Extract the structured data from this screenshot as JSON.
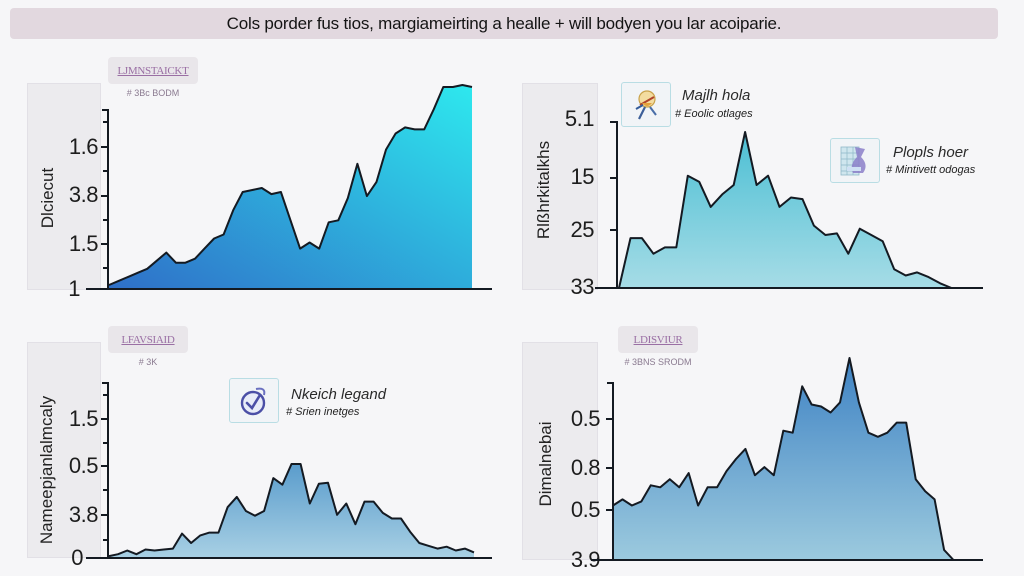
{
  "banner": {
    "text": "Cols porder fus tios, margiameirting a healle + will bodyen you lar acoiparie."
  },
  "panels": [
    {
      "tag": "LJMNSTAICKT",
      "tag_sub": "# 3Bc BODM",
      "ylabel": "Dlciecut",
      "ticks": [
        "1.6",
        "3.8",
        "1.5",
        "1"
      ]
    },
    {
      "ylabel": "Rlßhrkitalkhs",
      "ticks": [
        "5.1",
        "15",
        "25",
        "33"
      ],
      "legends": [
        {
          "title": "Majlh hola",
          "sub": "# Eoolic otlages",
          "icon": "bulb-tools-icon"
        },
        {
          "title": "Plopls hoer",
          "sub": "# Mintivett odogas",
          "icon": "spreadsheet-icon"
        }
      ]
    },
    {
      "tag": "LFAVSIAID",
      "tag_sub": "# 3K",
      "ylabel": "Nameepjanlalmcaly",
      "ticks": [
        "1.5",
        "0.5",
        "3.8",
        "0"
      ],
      "legends": [
        {
          "title": "Nkeich legand",
          "sub": "# Srien inetges",
          "icon": "check-circle-icon"
        }
      ]
    },
    {
      "tag": "LDISVIUR",
      "tag_sub": "# 3BNS SRODM",
      "ylabel": "Dimalnebai",
      "ticks": [
        "0.5",
        "0.8",
        "0.5",
        "3.9"
      ]
    }
  ],
  "colors": {
    "banner_bg": "#e2d8df",
    "chart1_top": "#2ee8ee",
    "chart1_bottom": "#2f6fc8",
    "chart2_top": "#4cbfd4",
    "chart2_bottom": "#a6dce6",
    "chart3_top": "#5a9ccc",
    "chart3_bottom": "#a8d0e4",
    "chart4_top": "#3f83c4",
    "chart4_bottom": "#9ccade",
    "outline": "#141a22"
  },
  "chart_data": [
    {
      "type": "area",
      "title": "LJMNSTAICKT",
      "ylabel": "Dlciecut",
      "xlabel": "",
      "y_tick_labels": [
        "1.6",
        "3.8",
        "1.5",
        "1"
      ],
      "grid": false,
      "legend": null,
      "x": [
        0,
        1,
        2,
        3,
        4,
        5,
        6,
        7,
        8,
        9,
        10,
        11,
        12,
        13,
        14,
        15,
        16,
        17,
        18,
        19,
        20,
        21,
        22,
        23,
        24,
        25,
        26,
        27,
        28,
        29,
        30,
        31,
        32,
        33,
        34,
        35,
        36,
        37,
        38
      ],
      "values_normalized": [
        0.02,
        0.04,
        0.06,
        0.08,
        0.1,
        0.14,
        0.18,
        0.13,
        0.13,
        0.15,
        0.2,
        0.25,
        0.27,
        0.39,
        0.48,
        0.49,
        0.5,
        0.47,
        0.48,
        0.34,
        0.2,
        0.23,
        0.2,
        0.33,
        0.34,
        0.45,
        0.62,
        0.46,
        0.53,
        0.69,
        0.77,
        0.8,
        0.79,
        0.79,
        0.89,
        1.0,
        1.0,
        1.01,
        1.0
      ]
    },
    {
      "type": "area",
      "title": "",
      "ylabel": "Rlßhrkitalkhs",
      "xlabel": "",
      "y_tick_labels": [
        "5.1",
        "15",
        "25",
        "33"
      ],
      "grid": false,
      "legend": [
        "Majlh hola",
        "Plopls hoer"
      ],
      "x": [
        0,
        1,
        2,
        3,
        4,
        5,
        6,
        7,
        8,
        9,
        10,
        11,
        12,
        13,
        14,
        15,
        16,
        17,
        18,
        19,
        20,
        21,
        22,
        23,
        24,
        25,
        26,
        27,
        28,
        29,
        30
      ],
      "values_normalized": [
        0.0,
        0.32,
        0.32,
        0.22,
        0.26,
        0.26,
        0.72,
        0.68,
        0.52,
        0.6,
        0.66,
        1.0,
        0.66,
        0.72,
        0.52,
        0.58,
        0.57,
        0.4,
        0.34,
        0.35,
        0.22,
        0.38,
        0.34,
        0.3,
        0.12,
        0.08,
        0.1,
        0.07,
        0.03,
        0.0,
        0.0
      ]
    },
    {
      "type": "area",
      "title": "LFAVSIAID",
      "ylabel": "Nameepjanlalmcaly",
      "xlabel": "",
      "y_tick_labels": [
        "1.5",
        "0.5",
        "3.8",
        "0"
      ],
      "grid": false,
      "legend": [
        "Nkeich legand"
      ],
      "x": [
        0,
        1,
        2,
        3,
        4,
        5,
        6,
        7,
        8,
        9,
        10,
        11,
        12,
        13,
        14,
        15,
        16,
        17,
        18,
        19,
        20,
        21,
        22,
        23,
        24,
        25,
        26,
        27,
        28,
        29,
        30,
        31,
        32,
        33,
        34,
        35,
        36,
        37,
        38,
        39,
        40
      ],
      "values_normalized": [
        0.02,
        0.04,
        0.08,
        0.04,
        0.09,
        0.08,
        0.09,
        0.1,
        0.26,
        0.16,
        0.24,
        0.27,
        0.27,
        0.54,
        0.65,
        0.5,
        0.45,
        0.5,
        0.85,
        0.78,
        1.0,
        1.0,
        0.58,
        0.79,
        0.8,
        0.46,
        0.58,
        0.36,
        0.6,
        0.6,
        0.48,
        0.42,
        0.42,
        0.28,
        0.16,
        0.13,
        0.1,
        0.12,
        0.08,
        0.1,
        0.06
      ]
    },
    {
      "type": "area",
      "title": "LDISVIUR",
      "ylabel": "Dimalnebai",
      "xlabel": "",
      "y_tick_labels": [
        "0.5",
        "0.8",
        "0.5",
        "3.9"
      ],
      "grid": false,
      "legend": null,
      "x": [
        0,
        1,
        2,
        3,
        4,
        5,
        6,
        7,
        8,
        9,
        10,
        11,
        12,
        13,
        14,
        15,
        16,
        17,
        18,
        19,
        20,
        21,
        22,
        23,
        24,
        25,
        26,
        27,
        28,
        29,
        30,
        31,
        32,
        33,
        34,
        35,
        36,
        37
      ],
      "values_normalized": [
        0.27,
        0.3,
        0.27,
        0.29,
        0.37,
        0.36,
        0.4,
        0.36,
        0.43,
        0.27,
        0.36,
        0.36,
        0.44,
        0.5,
        0.55,
        0.42,
        0.46,
        0.42,
        0.64,
        0.63,
        0.86,
        0.77,
        0.76,
        0.73,
        0.78,
        1.0,
        0.78,
        0.63,
        0.61,
        0.63,
        0.68,
        0.68,
        0.4,
        0.34,
        0.3,
        0.05,
        0.0,
        0.0
      ]
    }
  ]
}
